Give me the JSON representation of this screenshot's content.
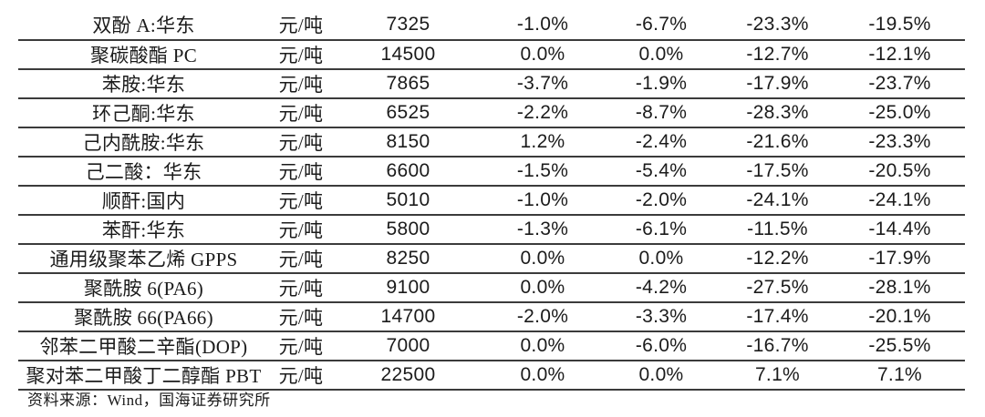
{
  "table": {
    "rows": [
      {
        "name": "双酚 A:华东",
        "unit": "元/吨",
        "price": "7325",
        "changes": [
          "-1.0%",
          "-6.7%",
          "-23.3%",
          "-19.5%"
        ]
      },
      {
        "name": "聚碳酸酯 PC",
        "unit": "元/吨",
        "price": "14500",
        "changes": [
          "0.0%",
          "0.0%",
          "-12.7%",
          "-12.1%"
        ]
      },
      {
        "name": "苯胺:华东",
        "unit": "元/吨",
        "price": "7865",
        "changes": [
          "-3.7%",
          "-1.9%",
          "-17.9%",
          "-23.7%"
        ]
      },
      {
        "name": "环己酮:华东",
        "unit": "元/吨",
        "price": "6525",
        "changes": [
          "-2.2%",
          "-8.7%",
          "-28.3%",
          "-25.0%"
        ]
      },
      {
        "name": "己内酰胺:华东",
        "unit": "元/吨",
        "price": "8150",
        "changes": [
          "1.2%",
          "-2.4%",
          "-21.6%",
          "-23.3%"
        ]
      },
      {
        "name": "己二酸：华东",
        "unit": "元/吨",
        "price": "6600",
        "changes": [
          "-1.5%",
          "-5.4%",
          "-17.5%",
          "-20.5%"
        ]
      },
      {
        "name": "顺酐:国内",
        "unit": "元/吨",
        "price": "5010",
        "changes": [
          "-1.0%",
          "-2.0%",
          "-24.1%",
          "-24.1%"
        ]
      },
      {
        "name": "苯酐:华东",
        "unit": "元/吨",
        "price": "5800",
        "changes": [
          "-1.3%",
          "-6.1%",
          "-11.5%",
          "-14.4%"
        ]
      },
      {
        "name": "通用级聚苯乙烯 GPPS",
        "unit": "元/吨",
        "price": "8250",
        "changes": [
          "0.0%",
          "0.0%",
          "-12.2%",
          "-17.9%"
        ]
      },
      {
        "name": "聚酰胺 6(PA6)",
        "unit": "元/吨",
        "price": "9100",
        "changes": [
          "0.0%",
          "-4.2%",
          "-27.5%",
          "-28.1%"
        ]
      },
      {
        "name": "聚酰胺 66(PA66)",
        "unit": "元/吨",
        "price": "14700",
        "changes": [
          "-2.0%",
          "-3.3%",
          "-17.4%",
          "-20.1%"
        ]
      },
      {
        "name": "邻苯二甲酸二辛酯(DOP)",
        "unit": "元/吨",
        "price": "7000",
        "changes": [
          "0.0%",
          "-6.0%",
          "-16.7%",
          "-25.5%"
        ]
      },
      {
        "name": "聚对苯二甲酸丁二醇酯 PBT",
        "unit": "元/吨",
        "price": "22500",
        "changes": [
          "0.0%",
          "0.0%",
          "7.1%",
          "7.1%"
        ]
      }
    ]
  },
  "footer": {
    "text": "资料来源：Wind，国海证券研究所"
  }
}
